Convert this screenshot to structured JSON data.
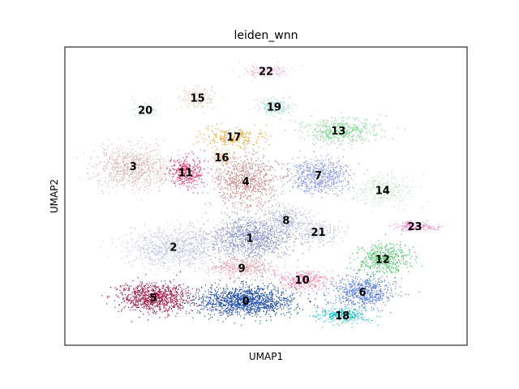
{
  "chart_data": {
    "type": "scatter",
    "title": "leiden_wnn",
    "xlabel": "UMAP1",
    "ylabel": "UMAP2",
    "xlim": [
      0,
      100
    ],
    "ylim": [
      0,
      100
    ],
    "grid": false,
    "legend": "none",
    "clusters": [
      {
        "label": "0",
        "x": 45,
        "y": 15,
        "sx": 11,
        "sy": 4.5,
        "n": 1400,
        "color": "#1f4fa8"
      },
      {
        "label": "1",
        "x": 46,
        "y": 36,
        "sx": 10,
        "sy": 6,
        "n": 1100,
        "color": "#8a94c4"
      },
      {
        "label": "2",
        "x": 27,
        "y": 33,
        "sx": 10,
        "sy": 6,
        "n": 950,
        "color": "#c6cbe0"
      },
      {
        "label": "3",
        "x": 17,
        "y": 60,
        "sx": 9,
        "sy": 6,
        "n": 800,
        "color": "#d9b7b7"
      },
      {
        "label": "4",
        "x": 45,
        "y": 55,
        "sx": 7,
        "sy": 8,
        "n": 800,
        "color": "#c98787"
      },
      {
        "label": "5",
        "x": 22,
        "y": 16,
        "sx": 8,
        "sy": 4.5,
        "n": 900,
        "color": "#9c1342"
      },
      {
        "label": "6",
        "x": 74,
        "y": 18,
        "sx": 7,
        "sy": 4.5,
        "n": 650,
        "color": "#5b7fdb"
      },
      {
        "label": "7",
        "x": 63,
        "y": 57,
        "sx": 7,
        "sy": 5,
        "n": 650,
        "color": "#8c9ae0"
      },
      {
        "label": "8",
        "x": 55,
        "y": 42,
        "sx": 5,
        "sy": 4,
        "n": 300,
        "color": "#aeb5d6"
      },
      {
        "label": "9",
        "x": 44,
        "y": 26,
        "sx": 8,
        "sy": 3,
        "n": 450,
        "color": "#e5a9b5"
      },
      {
        "label": "10",
        "x": 59,
        "y": 22,
        "sx": 6,
        "sy": 3,
        "n": 350,
        "color": "#f08fb0"
      },
      {
        "label": "11",
        "x": 30,
        "y": 58,
        "sx": 4,
        "sy": 4.5,
        "n": 350,
        "color": "#d6376a"
      },
      {
        "label": "12",
        "x": 79,
        "y": 29,
        "sx": 6,
        "sy": 5,
        "n": 450,
        "color": "#3fc45d"
      },
      {
        "label": "13",
        "x": 68,
        "y": 72,
        "sx": 8,
        "sy": 4,
        "n": 450,
        "color": "#7fd38f"
      },
      {
        "label": "14",
        "x": 79,
        "y": 52,
        "sx": 7,
        "sy": 4.5,
        "n": 220,
        "color": "#b8dcc0"
      },
      {
        "label": "15",
        "x": 33,
        "y": 83,
        "sx": 4,
        "sy": 3.5,
        "n": 160,
        "color": "#e2c8b8"
      },
      {
        "label": "16",
        "x": 39,
        "y": 63,
        "sx": 2.5,
        "sy": 3,
        "n": 120,
        "color": "#f2bd90"
      },
      {
        "label": "17",
        "x": 42,
        "y": 70,
        "sx": 8,
        "sy": 3,
        "n": 220,
        "color": "#e6a126"
      },
      {
        "label": "18",
        "x": 69,
        "y": 10,
        "sx": 6,
        "sy": 2.5,
        "n": 300,
        "color": "#20bfc8"
      },
      {
        "label": "19",
        "x": 52,
        "y": 80,
        "sx": 4,
        "sy": 2.5,
        "n": 180,
        "color": "#9ed9cf"
      },
      {
        "label": "20",
        "x": 20,
        "y": 79,
        "sx": 3.5,
        "sy": 3,
        "n": 110,
        "color": "#c8e8e0"
      },
      {
        "label": "21",
        "x": 63,
        "y": 38,
        "sx": 5,
        "sy": 3.5,
        "n": 250,
        "color": "#c3c8df"
      },
      {
        "label": "22",
        "x": 50,
        "y": 92,
        "sx": 5,
        "sy": 1.8,
        "n": 160,
        "color": "#f0b5d4"
      },
      {
        "label": "23",
        "x": 87,
        "y": 40,
        "sx": 5,
        "sy": 1.5,
        "n": 130,
        "color": "#e87bc1"
      }
    ]
  }
}
